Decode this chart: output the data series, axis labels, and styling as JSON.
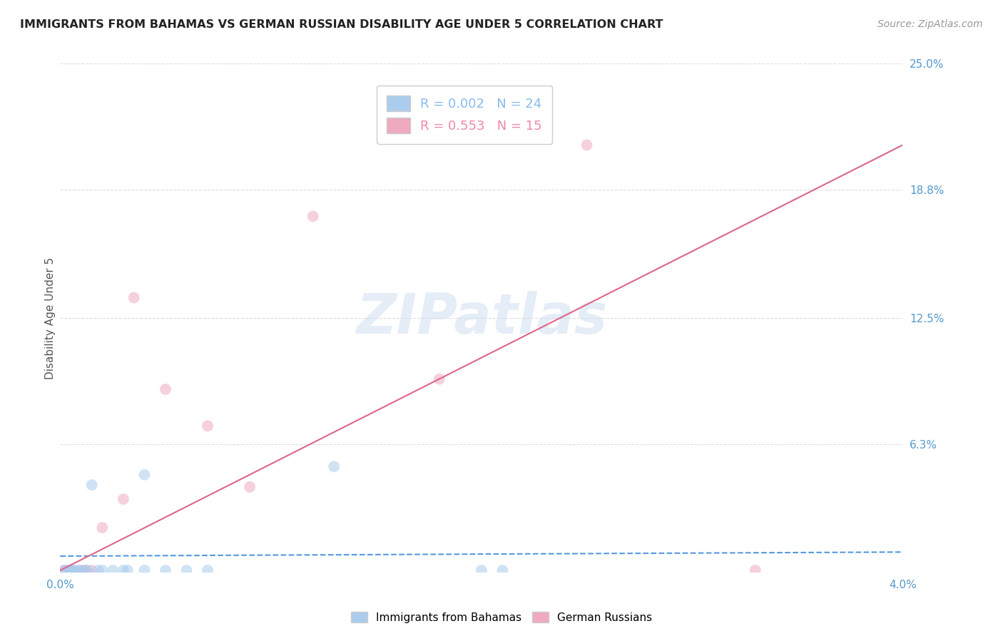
{
  "title": "IMMIGRANTS FROM BAHAMAS VS GERMAN RUSSIAN DISABILITY AGE UNDER 5 CORRELATION CHART",
  "source": "Source: ZipAtlas.com",
  "ylabel": "Disability Age Under 5",
  "watermark": "ZIPatlas",
  "x_min": 0.0,
  "x_max": 0.04,
  "y_min": 0.0,
  "y_max": 0.25,
  "x_ticks": [
    0.0,
    0.04
  ],
  "x_tick_labels": [
    "0.0%",
    "4.0%"
  ],
  "y_ticks": [
    0.0,
    0.063,
    0.125,
    0.188,
    0.25
  ],
  "y_tick_labels": [
    "",
    "6.3%",
    "12.5%",
    "18.8%",
    "25.0%"
  ],
  "legend_entries": [
    {
      "label": "R = 0.002   N = 24",
      "color": "#88bbee"
    },
    {
      "label": "R = 0.553   N = 15",
      "color": "#ee88aa"
    }
  ],
  "bahamas_color": "#aaccee",
  "german_russian_color": "#f0aac0",
  "trend_bahamas_color": "#5599dd",
  "trend_german_color": "#dd6688",
  "bahamas_x": [
    0.0002,
    0.0003,
    0.0004,
    0.0005,
    0.0006,
    0.0007,
    0.0008,
    0.001,
    0.0012,
    0.0013,
    0.0015,
    0.0018,
    0.002,
    0.0025,
    0.003,
    0.0032,
    0.004,
    0.004,
    0.005,
    0.006,
    0.007,
    0.013,
    0.02,
    0.021
  ],
  "bahamas_y": [
    0.001,
    0.001,
    0.001,
    0.001,
    0.001,
    0.001,
    0.001,
    0.001,
    0.001,
    0.001,
    0.043,
    0.001,
    0.001,
    0.001,
    0.001,
    0.001,
    0.048,
    0.001,
    0.001,
    0.001,
    0.001,
    0.052,
    0.001,
    0.001
  ],
  "german_x": [
    0.0002,
    0.0005,
    0.001,
    0.0012,
    0.0015,
    0.002,
    0.003,
    0.0035,
    0.005,
    0.007,
    0.009,
    0.012,
    0.018,
    0.025,
    0.033
  ],
  "german_y": [
    0.001,
    0.001,
    0.001,
    0.001,
    0.001,
    0.022,
    0.036,
    0.135,
    0.09,
    0.072,
    0.042,
    0.175,
    0.095,
    0.21,
    0.001
  ],
  "bahamas_trend_x": [
    0.0,
    0.04
  ],
  "bahamas_trend_y": [
    0.008,
    0.01
  ],
  "german_trend_x": [
    0.0,
    0.04
  ],
  "german_trend_y": [
    0.001,
    0.21
  ],
  "bg_color": "#ffffff",
  "grid_color": "#dddddd",
  "axis_label_color": "#5599cc",
  "marker_size": 130,
  "marker_alpha": 0.55
}
